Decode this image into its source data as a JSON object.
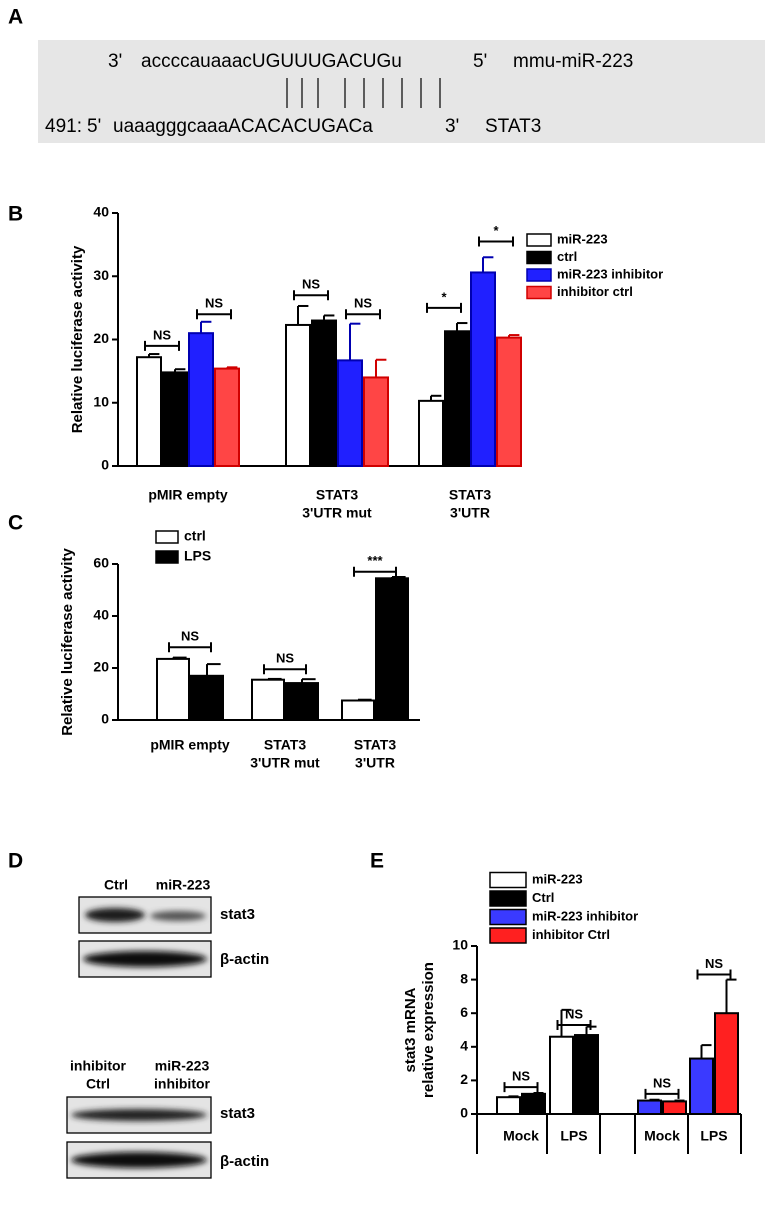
{
  "panel_labels": [
    "A",
    "B",
    "C",
    "D",
    "E"
  ],
  "alignment": {
    "line1": [
      "3'",
      "accccauaaacUGUUUGACUGu",
      "5'",
      "mmu-miR-223"
    ],
    "line2": [
      "491:",
      "5'",
      "uaaagggcaaaACACACUGACa",
      "3'",
      "STAT3"
    ]
  },
  "blots": {
    "top": {
      "lanes": [
        [
          "Ctrl"
        ],
        [
          "miR-223"
        ]
      ],
      "rows": [
        "stat3",
        "β-actin"
      ]
    },
    "bottom": {
      "lanes": [
        [
          "inhibitor",
          "Ctrl"
        ],
        [
          "miR-223",
          "inhibitor"
        ]
      ],
      "rows": [
        "stat3",
        "β-actin"
      ]
    }
  },
  "chart_data": [
    {
      "type": "bar",
      "y_label": [
        "Relative luciferase activity"
      ],
      "categories": [
        [
          "pMIR empty"
        ],
        [
          "STAT3",
          "3'UTR mut"
        ],
        [
          "STAT3",
          "3'UTR"
        ]
      ],
      "series": [
        {
          "name": "miR-223",
          "color": "#ffffff",
          "values": [
            17.2,
            22.3,
            10.3
          ],
          "errors": [
            0.5,
            3.0,
            0.8
          ]
        },
        {
          "name": "ctrl",
          "color": "#000000",
          "values": [
            14.8,
            23.0,
            21.3
          ],
          "errors": [
            0.5,
            0.8,
            1.3
          ]
        },
        {
          "name": "miR-223 inhibitor",
          "color": "#2020ff",
          "values": [
            21.0,
            16.7,
            30.6
          ],
          "errors": [
            1.8,
            5.8,
            2.4
          ]
        },
        {
          "name": "inhibitor ctrl",
          "color": "#ff4545",
          "values": [
            15.4,
            14.0,
            20.3
          ],
          "errors": [
            0.2,
            2.8,
            0.4
          ]
        }
      ],
      "ylim": [
        0,
        40
      ],
      "yticks": [
        0,
        10,
        20,
        30,
        40
      ],
      "annotations": [
        "NS",
        "NS",
        "NS",
        "NS",
        "*",
        "*"
      ]
    },
    {
      "type": "bar",
      "y_label": [
        "Relative luciferase activity"
      ],
      "categories": [
        [
          "pMIR empty"
        ],
        [
          "STAT3",
          "3'UTR mut"
        ],
        [
          "STAT3",
          "3'UTR"
        ]
      ],
      "series": [
        {
          "name": "ctrl",
          "color": "#ffffff",
          "values": [
            23.5,
            15.5,
            7.5
          ],
          "errors": [
            0.5,
            0.3,
            0.3
          ]
        },
        {
          "name": "LPS",
          "color": "#000000",
          "values": [
            17.0,
            14.2,
            54.5
          ],
          "errors": [
            4.5,
            1.5,
            0.5
          ]
        }
      ],
      "ylim": [
        0,
        60
      ],
      "yticks": [
        0,
        20,
        40,
        60
      ],
      "annotations": [
        "NS",
        "NS",
        "***"
      ]
    },
    {
      "type": "bar",
      "y_label": [
        "stat3 mRNA",
        "relative expression"
      ],
      "categories": [
        [
          "Mock"
        ],
        [
          "LPS"
        ],
        [
          "Mock"
        ],
        [
          "LPS"
        ]
      ],
      "series": [
        {
          "name": "miR-223",
          "color": "#ffffff",
          "values": [
            1.0,
            4.6,
            null,
            null
          ],
          "errors": [
            0.05,
            1.6,
            null,
            null
          ]
        },
        {
          "name": "Ctrl",
          "color": "#000000",
          "values": [
            1.2,
            4.7,
            null,
            null
          ],
          "errors": [
            0.05,
            0.5,
            null,
            null
          ]
        },
        {
          "name": "miR-223 inhibitor",
          "color": "#3a3aff",
          "values": [
            null,
            null,
            0.8,
            3.3
          ],
          "errors": [
            null,
            null,
            0.05,
            0.8
          ]
        },
        {
          "name": "inhibitor Ctrl",
          "color": "#ff2020",
          "values": [
            null,
            null,
            0.75,
            6.0
          ],
          "errors": [
            null,
            null,
            0.05,
            2.0
          ]
        }
      ],
      "ylim": [
        0,
        10
      ],
      "yticks": [
        0,
        2,
        4,
        6,
        8,
        10
      ],
      "annotations": [
        "NS",
        "NS",
        "NS",
        "NS"
      ]
    }
  ]
}
